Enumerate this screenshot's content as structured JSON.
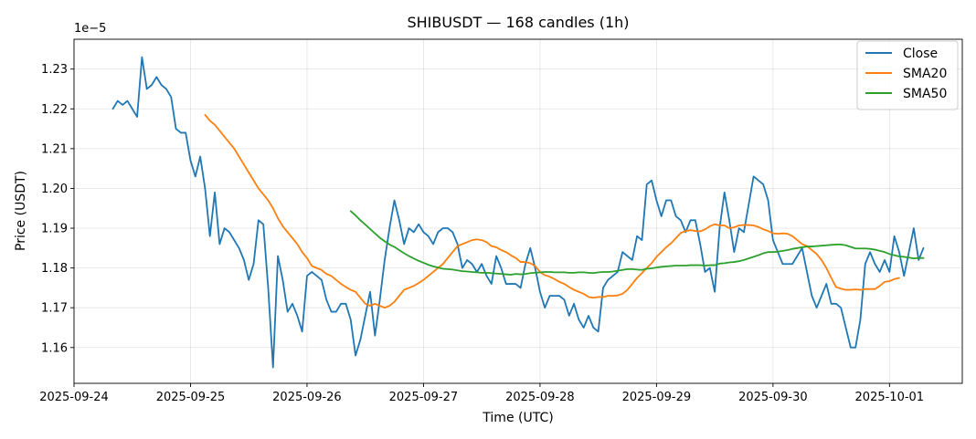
{
  "chart_data": {
    "type": "line",
    "title": "SHIBUSDT — 168 candles (1h)",
    "xlabel": "Time (UTC)",
    "ylabel": "Price (USDT)",
    "y_offset_text": "1e−5",
    "x_range": [
      "2025-09-24T00:00",
      "2025-10-01T15:00"
    ],
    "ylim": [
      1.151,
      1.2375
    ],
    "y_ticks": [
      "1.16",
      "1.17",
      "1.18",
      "1.19",
      "1.20",
      "1.21",
      "1.22",
      "1.23"
    ],
    "x_ticks": [
      "2025-09-24",
      "2025-09-25",
      "2025-09-26",
      "2025-09-27",
      "2025-09-28",
      "2025-09-29",
      "2025-09-30",
      "2025-10-01"
    ],
    "grid": true,
    "legend": "top-right",
    "start_time": "2025-09-24T08:00",
    "interval_hours": 1,
    "series": [
      {
        "name": "Close",
        "color": "#1f77b4",
        "values": [
          1.22,
          1.222,
          1.221,
          1.222,
          1.22,
          1.218,
          1.233,
          1.225,
          1.226,
          1.228,
          1.226,
          1.225,
          1.223,
          1.215,
          1.214,
          1.214,
          1.207,
          1.203,
          1.208,
          1.2,
          1.188,
          1.199,
          1.186,
          1.19,
          1.189,
          1.187,
          1.185,
          1.182,
          1.177,
          1.181,
          1.192,
          1.191,
          1.175,
          1.155,
          1.183,
          1.177,
          1.169,
          1.171,
          1.168,
          1.164,
          1.178,
          1.179,
          1.178,
          1.177,
          1.172,
          1.169,
          1.169,
          1.171,
          1.171,
          1.167,
          1.158,
          1.162,
          1.168,
          1.174,
          1.163,
          1.172,
          1.182,
          1.19,
          1.197,
          1.192,
          1.186,
          1.19,
          1.189,
          1.191,
          1.189,
          1.188,
          1.186,
          1.189,
          1.19,
          1.19,
          1.189,
          1.186,
          1.18,
          1.182,
          1.181,
          1.179,
          1.181,
          1.178,
          1.176,
          1.183,
          1.18,
          1.176,
          1.176,
          1.176,
          1.175,
          1.181,
          1.185,
          1.18,
          1.174,
          1.17,
          1.173,
          1.173,
          1.173,
          1.172,
          1.168,
          1.171,
          1.167,
          1.165,
          1.168,
          1.165,
          1.164,
          1.175,
          1.177,
          1.178,
          1.179,
          1.184,
          1.183,
          1.182,
          1.188,
          1.187,
          1.201,
          1.202,
          1.197,
          1.193,
          1.197,
          1.197,
          1.193,
          1.192,
          1.189,
          1.192,
          1.192,
          1.186,
          1.179,
          1.18,
          1.174,
          1.19,
          1.199,
          1.192,
          1.184,
          1.19,
          1.189,
          1.196,
          1.203,
          1.202,
          1.201,
          1.197,
          1.187,
          1.184,
          1.181,
          1.181,
          1.181,
          1.183,
          1.185,
          1.179,
          1.173,
          1.17,
          1.173,
          1.176,
          1.171,
          1.171,
          1.17,
          1.165,
          1.16,
          1.16,
          1.167,
          1.181,
          1.184,
          1.181,
          1.179,
          1.182,
          1.179,
          1.188,
          1.184,
          1.178,
          1.184,
          1.19,
          1.182,
          1.185
        ]
      },
      {
        "name": "SMA20",
        "color": "#ff7f0e",
        "start_index": 19,
        "values": [
          1.2185,
          1.217,
          1.216,
          1.2145,
          1.213,
          1.2115,
          1.21,
          1.208,
          1.206,
          1.204,
          1.202,
          1.2,
          1.1985,
          1.197,
          1.195,
          1.1925,
          1.1905,
          1.189,
          1.1875,
          1.186,
          1.184,
          1.1825,
          1.1805,
          1.18,
          1.1795,
          1.1785,
          1.178,
          1.177,
          1.176,
          1.1752,
          1.1745,
          1.174,
          1.1725,
          1.171,
          1.1705,
          1.171,
          1.1705,
          1.17,
          1.1705,
          1.1715,
          1.173,
          1.1745,
          1.175,
          1.1755,
          1.1762,
          1.177,
          1.178,
          1.179,
          1.18,
          1.181,
          1.1825,
          1.184,
          1.1855,
          1.186,
          1.1865,
          1.187,
          1.1872,
          1.187,
          1.1865,
          1.1855,
          1.1852,
          1.1845,
          1.184,
          1.1832,
          1.1825,
          1.1815,
          1.1815,
          1.1812,
          1.1805,
          1.179,
          1.1782,
          1.1778,
          1.1772,
          1.1765,
          1.176,
          1.1752,
          1.1745,
          1.174,
          1.1735,
          1.1727,
          1.1725,
          1.1727,
          1.1727,
          1.173,
          1.173,
          1.1731,
          1.1735,
          1.1745,
          1.176,
          1.1775,
          1.1787,
          1.18,
          1.1812,
          1.1828,
          1.184,
          1.1852,
          1.1862,
          1.1875,
          1.1888,
          1.1893,
          1.1895,
          1.1893,
          1.1892,
          1.1897,
          1.1905,
          1.191,
          1.1907,
          1.1907,
          1.19,
          1.1902,
          1.1907,
          1.1908,
          1.1908,
          1.1907,
          1.1903,
          1.1897,
          1.1893,
          1.1887,
          1.1886,
          1.1887,
          1.1886,
          1.188,
          1.187,
          1.186,
          1.1855,
          1.1845,
          1.1835,
          1.182,
          1.18,
          1.1775,
          1.1752,
          1.1748,
          1.1745,
          1.1745,
          1.1746,
          1.1745,
          1.1747,
          1.1747,
          1.1747,
          1.1755,
          1.1765,
          1.1767,
          1.1772,
          1.1775
        ]
      },
      {
        "name": "SMA50",
        "color": "#2ca02c",
        "start_index": 49,
        "values": [
          1.1943,
          1.1932,
          1.192,
          1.1909,
          1.1898,
          1.1887,
          1.1876,
          1.1867,
          1.1859,
          1.1853,
          1.1845,
          1.1837,
          1.183,
          1.1824,
          1.1818,
          1.1813,
          1.1808,
          1.1804,
          1.1801,
          1.1798,
          1.1797,
          1.1796,
          1.1794,
          1.1792,
          1.1791,
          1.179,
          1.1789,
          1.1788,
          1.1788,
          1.1787,
          1.1786,
          1.1785,
          1.1784,
          1.1783,
          1.1785,
          1.1784,
          1.1785,
          1.1787,
          1.1788,
          1.1789,
          1.179,
          1.179,
          1.1789,
          1.1789,
          1.1789,
          1.1788,
          1.1788,
          1.1789,
          1.1789,
          1.1788,
          1.1787,
          1.1789,
          1.179,
          1.179,
          1.1791,
          1.1793,
          1.1795,
          1.1797,
          1.1797,
          1.1796,
          1.1795,
          1.1798,
          1.1799,
          1.1801,
          1.1803,
          1.1804,
          1.1805,
          1.1806,
          1.1806,
          1.1806,
          1.1807,
          1.1807,
          1.1807,
          1.1806,
          1.1807,
          1.1807,
          1.1811,
          1.1812,
          1.1814,
          1.1815,
          1.1817,
          1.182,
          1.1824,
          1.1828,
          1.1832,
          1.1837,
          1.184,
          1.184,
          1.1841,
          1.1843,
          1.1845,
          1.1848,
          1.185,
          1.1852,
          1.1854,
          1.1854,
          1.1855,
          1.1856,
          1.1857,
          1.1858,
          1.1859,
          1.1859,
          1.1857,
          1.1853,
          1.1849,
          1.1849,
          1.1849,
          1.1848,
          1.1846,
          1.1843,
          1.184,
          1.1835,
          1.1832,
          1.1829,
          1.1828,
          1.1826,
          1.1824,
          1.1825,
          1.1825
        ]
      }
    ]
  }
}
